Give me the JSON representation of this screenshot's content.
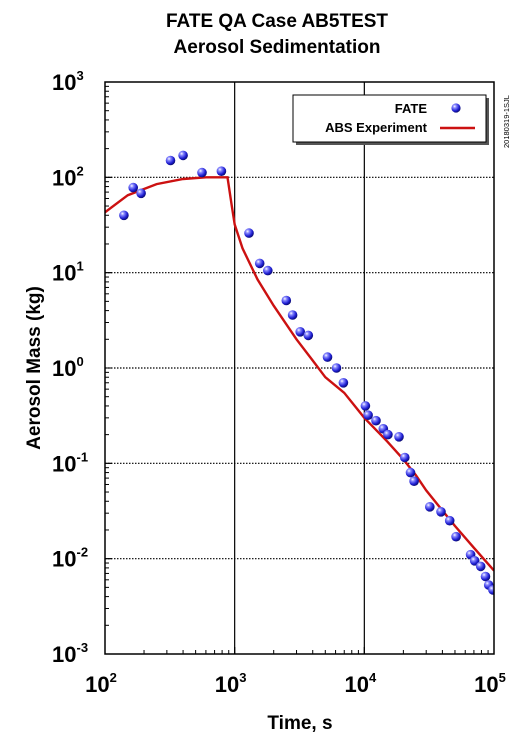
{
  "chart_data": {
    "type": "scatter",
    "title": "FATE QA Case AB5TEST",
    "subtitle": "Aerosol Sedimentation",
    "xlabel": "Time, s",
    "ylabel": "Aerosol Mass (kg)",
    "x_scale": "log",
    "y_scale": "log",
    "xlim": [
      100,
      100000
    ],
    "ylim": [
      0.001,
      1000
    ],
    "x_ticks": [
      {
        "value": 100,
        "base": "10",
        "exp": "2"
      },
      {
        "value": 1000,
        "base": "10",
        "exp": "3"
      },
      {
        "value": 10000,
        "base": "10",
        "exp": "4"
      },
      {
        "value": 100000,
        "base": "10",
        "exp": "5"
      }
    ],
    "y_ticks": [
      {
        "value": 0.001,
        "base": "10",
        "exp": "-3"
      },
      {
        "value": 0.01,
        "base": "10",
        "exp": "-2"
      },
      {
        "value": 0.1,
        "base": "10",
        "exp": "-1"
      },
      {
        "value": 1,
        "base": "10",
        "exp": "0"
      },
      {
        "value": 10,
        "base": "10",
        "exp": "1"
      },
      {
        "value": 100,
        "base": "10",
        "exp": "2"
      },
      {
        "value": 1000,
        "base": "10",
        "exp": "3"
      }
    ],
    "grid": "vertical lines at decades, dotted horizontal lines at decades",
    "legend_position": "top-right",
    "side_note": "20180319-1SJL",
    "series": [
      {
        "name": "FATE",
        "type": "scatter",
        "marker": "blue-sphere",
        "color": "#2222dd",
        "points": [
          [
            140,
            40
          ],
          [
            165,
            78
          ],
          [
            190,
            68
          ],
          [
            320,
            150
          ],
          [
            400,
            170
          ],
          [
            560,
            112
          ],
          [
            790,
            116
          ],
          [
            1290,
            26
          ],
          [
            1560,
            12.5
          ],
          [
            1800,
            10.5
          ],
          [
            2500,
            5.1
          ],
          [
            2800,
            3.6
          ],
          [
            3200,
            2.4
          ],
          [
            3700,
            2.2
          ],
          [
            5200,
            1.3
          ],
          [
            6100,
            1.0
          ],
          [
            6900,
            0.7
          ],
          [
            10200,
            0.4
          ],
          [
            10700,
            0.32
          ],
          [
            12300,
            0.28
          ],
          [
            14000,
            0.23
          ],
          [
            15200,
            0.2
          ],
          [
            18500,
            0.19
          ],
          [
            20500,
            0.115
          ],
          [
            22700,
            0.08
          ],
          [
            24200,
            0.065
          ],
          [
            32000,
            0.035
          ],
          [
            39000,
            0.031
          ],
          [
            45500,
            0.025
          ],
          [
            51000,
            0.017
          ],
          [
            66000,
            0.011
          ],
          [
            71000,
            0.0095
          ],
          [
            79000,
            0.0083
          ],
          [
            86000,
            0.0065
          ],
          [
            91000,
            0.0053
          ],
          [
            98000,
            0.0047
          ]
        ]
      },
      {
        "name": "ABS Experiment",
        "type": "line",
        "color": "#cc1111",
        "points": [
          [
            100,
            43
          ],
          [
            150,
            65
          ],
          [
            250,
            85
          ],
          [
            400,
            96
          ],
          [
            600,
            100
          ],
          [
            880,
            100
          ],
          [
            950,
            50
          ],
          [
            1000,
            32
          ],
          [
            1150,
            18
          ],
          [
            1500,
            8.5
          ],
          [
            2000,
            4.5
          ],
          [
            3000,
            2.0
          ],
          [
            4000,
            1.2
          ],
          [
            5000,
            0.8
          ],
          [
            7000,
            0.55
          ],
          [
            10000,
            0.3
          ],
          [
            15000,
            0.17
          ],
          [
            20000,
            0.11
          ],
          [
            25000,
            0.075
          ],
          [
            30000,
            0.052
          ],
          [
            40000,
            0.032
          ],
          [
            50000,
            0.022
          ],
          [
            70000,
            0.013
          ],
          [
            100000,
            0.0075
          ]
        ]
      }
    ]
  }
}
